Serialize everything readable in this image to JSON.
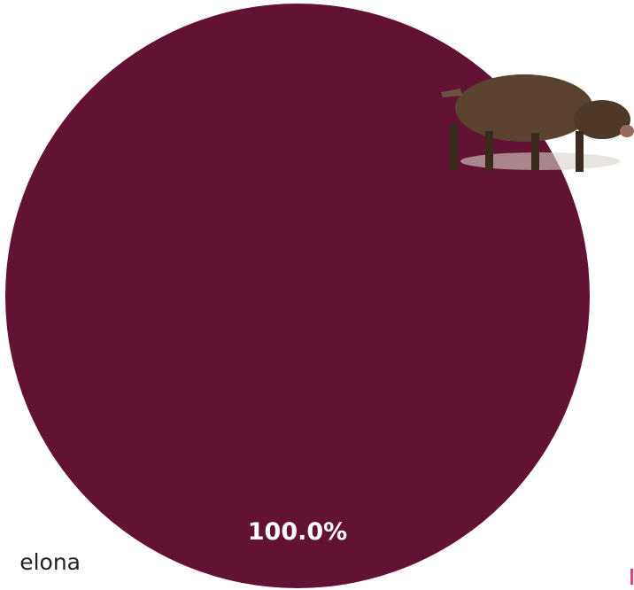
{
  "chart_data": {
    "type": "pie",
    "categories": [
      "elona"
    ],
    "values": [
      100
    ],
    "value_labels": [
      "100.0%"
    ],
    "colors": [
      "#621233"
    ]
  }
}
